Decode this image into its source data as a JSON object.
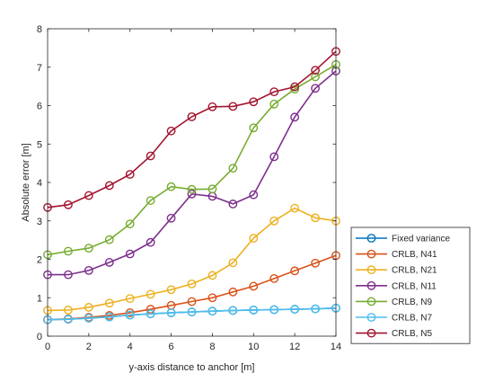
{
  "chart_data": {
    "type": "line",
    "xlabel": "y-axis distance to anchor [m]",
    "ylabel": "Absolute error [m]",
    "xlim": [
      0,
      14
    ],
    "ylim": [
      0,
      8
    ],
    "x_ticks": [
      0,
      2,
      4,
      6,
      8,
      10,
      12,
      14
    ],
    "y_ticks": [
      0,
      1,
      2,
      3,
      4,
      5,
      6,
      7,
      8
    ],
    "grid": false,
    "legend_position": "bottom-right outside",
    "marker": "circle-open",
    "x": [
      0,
      1,
      2,
      3,
      4,
      5,
      6,
      7,
      8,
      9,
      10,
      11,
      12,
      13,
      14
    ],
    "series": [
      {
        "name": "Fixed variance",
        "color": "#0072BD",
        "values": [
          0.43,
          0.44,
          0.47,
          0.5,
          0.55,
          0.58,
          0.61,
          0.63,
          0.65,
          0.67,
          0.68,
          0.69,
          0.7,
          0.71,
          0.73
        ]
      },
      {
        "name": "CRLB, N41",
        "color": "#D95319",
        "values": [
          0.43,
          0.45,
          0.49,
          0.54,
          0.61,
          0.7,
          0.8,
          0.9,
          1.0,
          1.15,
          1.3,
          1.5,
          1.7,
          1.9,
          2.1
        ]
      },
      {
        "name": "CRLB, N21",
        "color": "#EDB120",
        "values": [
          0.67,
          0.68,
          0.75,
          0.86,
          0.98,
          1.09,
          1.21,
          1.36,
          1.58,
          1.91,
          2.55,
          3.0,
          3.33,
          3.08,
          3.0
        ]
      },
      {
        "name": "CRLB, N11",
        "color": "#7E2F8E",
        "values": [
          1.6,
          1.6,
          1.71,
          1.92,
          2.14,
          2.44,
          3.07,
          3.7,
          3.64,
          3.44,
          3.68,
          4.67,
          5.7,
          6.45,
          6.9
        ]
      },
      {
        "name": "CRLB, N9",
        "color": "#77AC30",
        "values": [
          2.12,
          2.21,
          2.29,
          2.51,
          2.92,
          3.53,
          3.89,
          3.82,
          3.83,
          4.37,
          5.42,
          6.04,
          6.43,
          6.75,
          7.07
        ]
      },
      {
        "name": "CRLB, N7",
        "color": "#4DBEEE",
        "values": [
          0.43,
          0.44,
          0.47,
          0.5,
          0.55,
          0.58,
          0.61,
          0.63,
          0.65,
          0.67,
          0.68,
          0.69,
          0.7,
          0.71,
          0.73
        ]
      },
      {
        "name": "CRLB, N5",
        "color": "#A2142F",
        "values": [
          3.35,
          3.42,
          3.66,
          3.92,
          4.21,
          4.69,
          5.34,
          5.71,
          5.97,
          5.98,
          6.1,
          6.36,
          6.49,
          6.92,
          7.41
        ]
      }
    ]
  }
}
